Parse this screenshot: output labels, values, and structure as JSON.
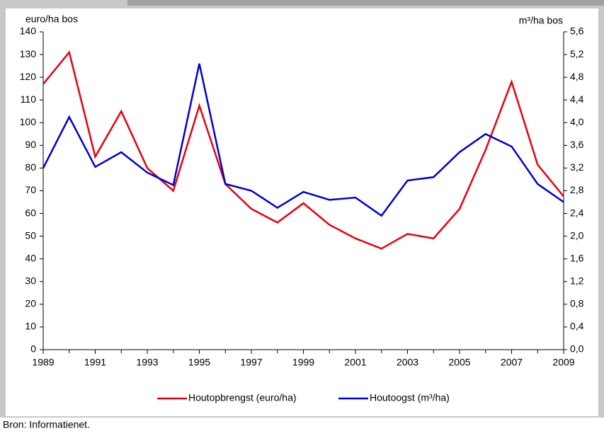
{
  "chart_data": {
    "type": "line",
    "y_label": "euro/ha bos",
    "y2_label": "m³/ha bos",
    "source": "Bron: Informatienet.",
    "x": [
      1989,
      1990,
      1991,
      1992,
      1993,
      1994,
      1995,
      1996,
      1997,
      1998,
      1999,
      2000,
      2001,
      2002,
      2003,
      2004,
      2005,
      2006,
      2007,
      2008,
      2009
    ],
    "xlim": [
      1989,
      2009
    ],
    "xticks": [
      1989,
      1991,
      1993,
      1995,
      1997,
      1999,
      2001,
      2003,
      2005,
      2007,
      2009
    ],
    "ylim": [
      0,
      140
    ],
    "yticks": [
      0,
      10,
      20,
      30,
      40,
      50,
      60,
      70,
      80,
      90,
      100,
      110,
      120,
      130,
      140
    ],
    "y2lim": [
      0,
      5.6
    ],
    "y2ticks": [
      {
        "value": 0,
        "label": "0,0"
      },
      {
        "value": 0.4,
        "label": "0,4"
      },
      {
        "value": 0.8,
        "label": "0,8"
      },
      {
        "value": 1.2,
        "label": "1,2"
      },
      {
        "value": 1.6,
        "label": "1,6"
      },
      {
        "value": 2.0,
        "label": "2,0"
      },
      {
        "value": 2.4,
        "label": "2,4"
      },
      {
        "value": 2.8,
        "label": "2,8"
      },
      {
        "value": 3.2,
        "label": "3,2"
      },
      {
        "value": 3.6,
        "label": "3,6"
      },
      {
        "value": 4.0,
        "label": "4,0"
      },
      {
        "value": 4.4,
        "label": "4,4"
      },
      {
        "value": 4.8,
        "label": "4,8"
      },
      {
        "value": 5.2,
        "label": "5,2"
      },
      {
        "value": 5.6,
        "label": "5,6"
      }
    ],
    "legend": "bottom",
    "series": [
      {
        "name": "Houtopbrengst (euro/ha)",
        "color": "#e8000f",
        "values": [
          117,
          131,
          85,
          105,
          80,
          70,
          107.5,
          73,
          62,
          56,
          64.5,
          55,
          49,
          44.5,
          51,
          49,
          62,
          88,
          118,
          81.5,
          67.5
        ]
      },
      {
        "name": "Houtoogst (m³/ha)",
        "color": "#0000d0",
        "axis": "y2",
        "values": [
          3.2,
          4.1,
          3.22,
          3.48,
          3.12,
          2.9,
          5.04,
          2.92,
          2.8,
          2.5,
          2.78,
          2.64,
          2.68,
          2.36,
          2.98,
          3.04,
          3.48,
          3.8,
          3.58,
          2.92,
          2.6
        ]
      }
    ]
  }
}
